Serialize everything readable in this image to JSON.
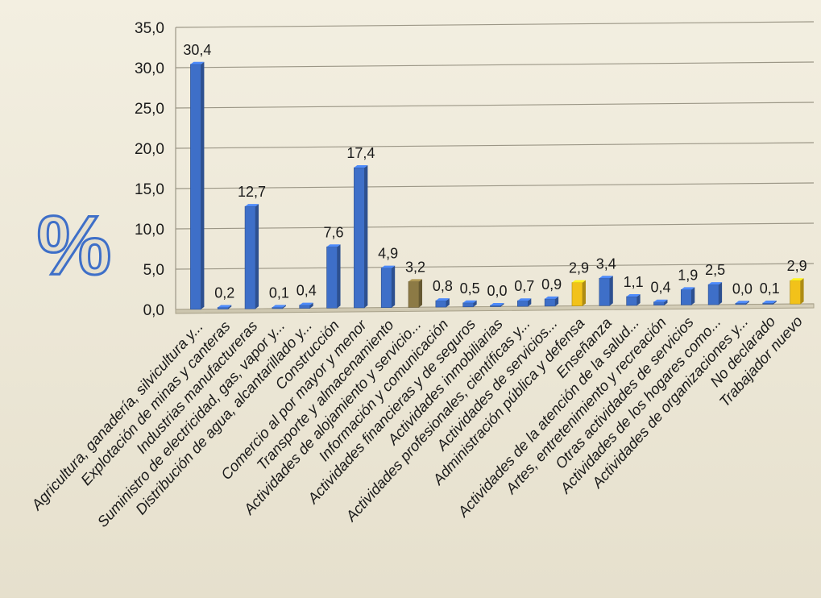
{
  "chart_data": {
    "type": "bar",
    "ylabel": "%",
    "ylim": [
      0,
      35
    ],
    "yticks": [
      "0,0",
      "5,0",
      "10,0",
      "15,0",
      "20,0",
      "25,0",
      "30,0",
      "35,0"
    ],
    "grid": true,
    "categories": [
      "Agricultura, ganadería, silvicultura y...",
      "Explotación de minas y canteras",
      "Industrias manufactureras",
      "Suministro de electricidad, gas, vapor y...",
      "Distribución de agua, alcantarillado y...",
      "Construcción",
      "Comercio al por mayor y menor",
      "Transporte y almacenamiento",
      "Actividades de alojamiento y servicio...",
      "Información y comunicación",
      "Actividades financieras y de seguros",
      "Actividades inmobiliarias",
      "Actividades profesionales, científicas y...",
      "Actividades de servicios...",
      "Administración pública y defensa",
      "Enseñanza",
      "Actividades de la atención de la salud...",
      "Artes, entretenimiento y recreación",
      "Otras actividades de servicios",
      "Actividades de los hogares como...",
      "Actividades de organizaciones y...",
      "No declarado",
      "Trabajador nuevo"
    ],
    "values": [
      30.4,
      0.2,
      12.7,
      0.1,
      0.4,
      7.6,
      17.4,
      4.9,
      3.2,
      0.8,
      0.5,
      0.0,
      0.7,
      0.9,
      2.9,
      3.4,
      1.1,
      0.4,
      1.9,
      2.5,
      0.0,
      0.1,
      2.9
    ],
    "value_labels": [
      "30,4",
      "0,2",
      "12,7",
      "0,1",
      "0,4",
      "7,6",
      "17,4",
      "4,9",
      "3,2",
      "0,8",
      "0,5",
      "0,0",
      "0,7",
      "0,9",
      "2,9",
      "3,4",
      "1,1",
      "0,4",
      "1,9",
      "2,5",
      "0,0",
      "0,1",
      "2,9"
    ],
    "colors": [
      "blue",
      "blue",
      "blue",
      "blue",
      "blue",
      "blue",
      "blue",
      "blue",
      "olive",
      "blue",
      "blue",
      "blue",
      "blue",
      "blue",
      "yellow",
      "blue",
      "blue",
      "blue",
      "blue",
      "blue",
      "blue",
      "blue",
      "yellow"
    ],
    "palette": {
      "blue": "#3E6FC8",
      "olive": "#8C7A45",
      "yellow": "#F2C21A",
      "background": "#EEE9D9",
      "grid": "#9B9686"
    }
  }
}
